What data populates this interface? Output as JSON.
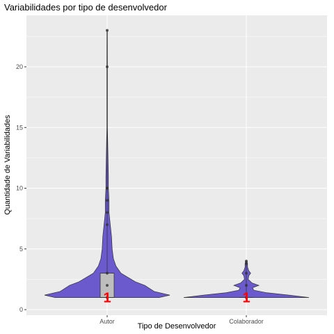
{
  "chart_data": {
    "type": "violin",
    "title": "Variabilidades por tipo de desenvolvedor",
    "xlabel": "Tipo de Desenvolvedor",
    "ylabel": "Quantidade de Variabilidades",
    "categories": [
      "Autor",
      "Colaborador"
    ],
    "ylim": [
      0,
      24
    ],
    "yticks": [
      0,
      5,
      10,
      15,
      20
    ],
    "grid": true,
    "colors": {
      "panel_bg": "#ebebeb",
      "gridline": "#ffffff",
      "violin_fill": "#6a5acd",
      "box_fill": "#bebebe",
      "median_label": "#ff0000"
    },
    "groups": [
      {
        "name": "Autor",
        "box": {
          "q1": 1,
          "median": 1,
          "q3": 3,
          "whisker_low": 1,
          "whisker_high": 23
        },
        "median_label": "1",
        "points": [
          23,
          20,
          10,
          10,
          9,
          8,
          7,
          3,
          2,
          1
        ],
        "density": [
          [
            1.0,
            0.83
          ],
          [
            1.2,
            1.0
          ],
          [
            1.5,
            0.75
          ],
          [
            2.0,
            0.6
          ],
          [
            2.3,
            0.45
          ],
          [
            2.6,
            0.35
          ],
          [
            3.0,
            0.22
          ],
          [
            3.6,
            0.14
          ],
          [
            4.2,
            0.1
          ],
          [
            5.0,
            0.08
          ],
          [
            6.0,
            0.07
          ],
          [
            7.0,
            0.05
          ],
          [
            8.0,
            0.03
          ],
          [
            9.0,
            0.03
          ],
          [
            10.0,
            0.02
          ],
          [
            11.0,
            0.02
          ],
          [
            15.0,
            0.005
          ],
          [
            20.0,
            0.005
          ],
          [
            23.0,
            0.003
          ]
        ]
      },
      {
        "name": "Colaborador",
        "box": {
          "q1": 1,
          "median": 1,
          "q3": 1,
          "whisker_low": 1,
          "whisker_high": 4
        },
        "median_label": "1",
        "points": [
          4,
          3.8,
          3,
          2,
          1
        ],
        "density": [
          [
            1.0,
            1.0
          ],
          [
            1.2,
            0.68
          ],
          [
            1.4,
            0.32
          ],
          [
            1.6,
            0.12
          ],
          [
            1.8,
            0.1
          ],
          [
            2.0,
            0.2
          ],
          [
            2.2,
            0.09
          ],
          [
            2.5,
            0.03
          ],
          [
            2.8,
            0.04
          ],
          [
            3.0,
            0.07
          ],
          [
            3.2,
            0.04
          ],
          [
            3.5,
            0.02
          ],
          [
            3.8,
            0.02
          ],
          [
            4.0,
            0.01
          ]
        ]
      }
    ]
  }
}
